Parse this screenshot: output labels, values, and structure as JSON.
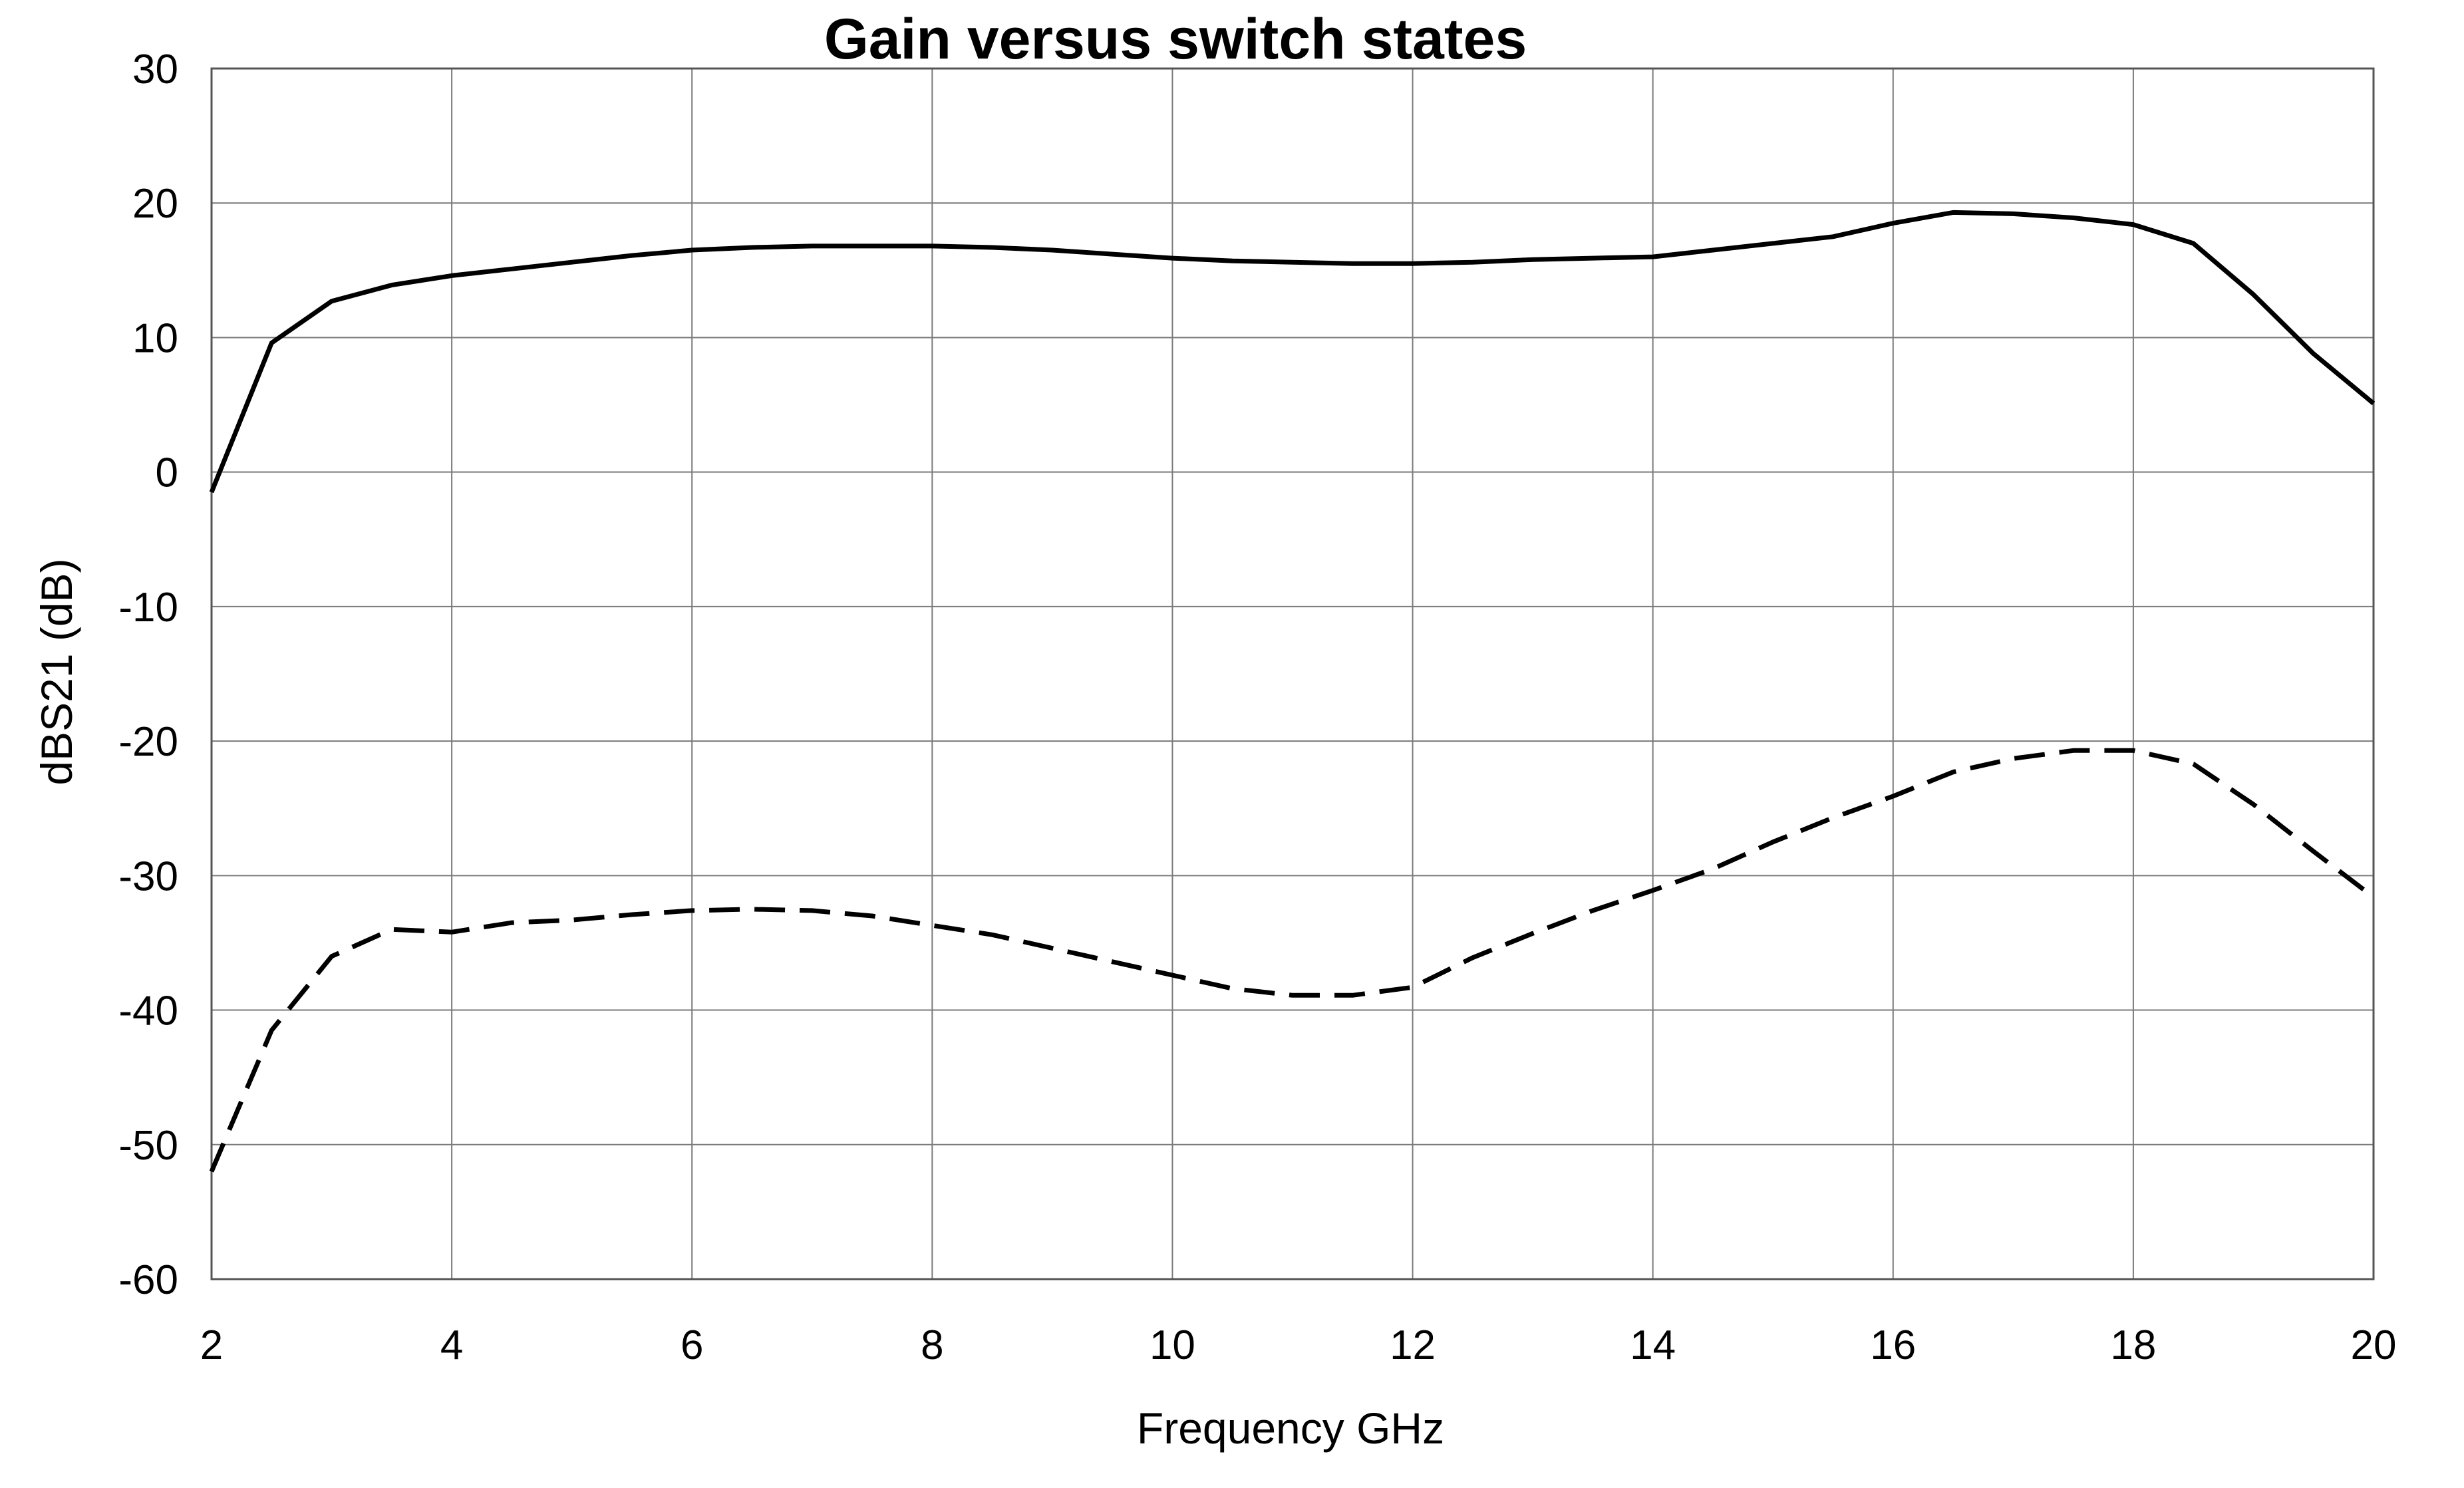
{
  "chart_data": {
    "type": "line",
    "title": "Gain versus switch states",
    "xlabel": "Frequency GHz",
    "ylabel": "dBS21 (dB)",
    "xlim": [
      2,
      20
    ],
    "ylim": [
      -60,
      30
    ],
    "xticks": [
      2,
      4,
      6,
      8,
      10,
      12,
      14,
      16,
      18,
      20
    ],
    "yticks": [
      30,
      20,
      10,
      0,
      -10,
      -20,
      -30,
      -40,
      -50,
      -60
    ],
    "grid": true,
    "series": [
      {
        "style": "solid",
        "color": "#000000",
        "x": [
          2,
          2.5,
          3,
          3.5,
          4,
          4.5,
          5,
          5.5,
          6,
          6.5,
          7,
          7.5,
          8,
          8.5,
          9,
          9.5,
          10,
          10.5,
          11,
          11.5,
          12,
          12.5,
          13,
          13.5,
          14,
          14.5,
          15,
          15.5,
          16,
          16.5,
          17,
          17.5,
          18,
          18.5,
          19,
          19.5,
          20
        ],
        "y": [
          -1.5,
          9.6,
          12.7,
          13.9,
          14.6,
          15.1,
          15.6,
          16.1,
          16.5,
          16.7,
          16.8,
          16.8,
          16.8,
          16.7,
          16.5,
          16.2,
          15.9,
          15.7,
          15.6,
          15.5,
          15.5,
          15.6,
          15.8,
          15.9,
          16.0,
          16.5,
          17.0,
          17.5,
          18.5,
          19.3,
          19.2,
          18.9,
          18.4,
          17.0,
          13.2,
          8.8,
          5.1
        ]
      },
      {
        "style": "dashed",
        "color": "#000000",
        "x": [
          2,
          2.5,
          3,
          3.5,
          4,
          4.5,
          5,
          5.5,
          6,
          6.5,
          7,
          7.5,
          8,
          8.5,
          9,
          9.5,
          10,
          10.5,
          11,
          11.5,
          12,
          12.5,
          13,
          13.5,
          14,
          14.5,
          15,
          15.5,
          16,
          16.5,
          17,
          17.5,
          18,
          18.5,
          19,
          19.5,
          20
        ],
        "y": [
          -52,
          -41.5,
          -36,
          -34,
          -34.2,
          -33.5,
          -33.3,
          -32.9,
          -32.6,
          -32.5,
          -32.6,
          -33,
          -33.7,
          -34.4,
          -35.4,
          -36.4,
          -37.4,
          -38.4,
          -38.9,
          -38.9,
          -38.3,
          -36.1,
          -34.3,
          -32.6,
          -31.1,
          -29.5,
          -27.5,
          -25.7,
          -24.1,
          -22.3,
          -21.3,
          -20.7,
          -20.7,
          -21.7,
          -24.7,
          -28.2,
          -31.6
        ]
      }
    ]
  }
}
